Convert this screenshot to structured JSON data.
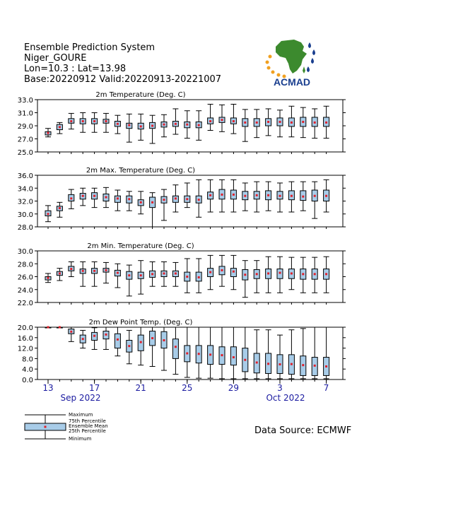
{
  "header": {
    "title": "Ensemble Prediction System",
    "station": "Niger_GOURE",
    "coords": "Lon=10.3 : Lat=13.98",
    "dates": "Base:20220912 Valid:20220913-20221007"
  },
  "logo": {
    "text": "ACMAD",
    "brand_color": "#1a3f8f",
    "africa_color": "#3c8a2e",
    "accent_color": "#f0a020"
  },
  "x_axis": {
    "tick_labels": [
      "13",
      "17",
      "21",
      "25",
      "29",
      "3",
      "7"
    ],
    "month_labels": [
      "Sep 2022",
      "Oct 2022"
    ],
    "color": "#1a1aa0"
  },
  "legend": {
    "maximum": "Maximum",
    "p75": "75th Percentile",
    "mean": "Ensemble Mean",
    "p25": "25th Percentile",
    "minimum": "Minimum"
  },
  "source": "Data Source: ECMWF",
  "colors": {
    "box_fill": "#a8cce8",
    "mean_marker": "#e0202a",
    "frame": "#000000"
  },
  "chart_data": [
    {
      "type": "boxplot",
      "title": "2m Temperature (Deg. C)",
      "x": [
        "13",
        "14",
        "15",
        "16",
        "17",
        "18",
        "19",
        "20",
        "21",
        "22",
        "23",
        "24",
        "25",
        "26",
        "27",
        "28",
        "29",
        "30",
        "1",
        "2",
        "3",
        "4",
        "5",
        "6",
        "7"
      ],
      "ylim": [
        25.0,
        33.0
      ],
      "yticks": [
        "33.0",
        "31.0",
        "29.0",
        "27.0",
        "25.0"
      ],
      "min": [
        27.3,
        27.8,
        28.5,
        28.0,
        28.0,
        28.0,
        27.8,
        26.5,
        26.8,
        26.3,
        27.3,
        27.7,
        27.1,
        26.8,
        28.3,
        28.1,
        27.8,
        26.6,
        27.2,
        27.5,
        27.3,
        27.3,
        27.2,
        27.1,
        27.1
      ],
      "p25": [
        27.6,
        28.4,
        29.4,
        29.3,
        29.3,
        29.4,
        28.9,
        28.6,
        28.5,
        28.6,
        28.8,
        28.9,
        28.7,
        28.7,
        29.3,
        29.5,
        29.3,
        28.9,
        28.9,
        29.0,
        29.0,
        28.9,
        28.9,
        28.9,
        28.9
      ],
      "mean": [
        27.9,
        28.8,
        29.7,
        29.7,
        29.7,
        29.7,
        29.3,
        29.1,
        28.9,
        29.0,
        29.2,
        29.3,
        29.2,
        29.1,
        29.7,
        29.9,
        29.7,
        29.5,
        29.5,
        29.6,
        29.6,
        29.5,
        29.6,
        29.5,
        29.5
      ],
      "p75": [
        28.1,
        29.2,
        30.1,
        30.1,
        30.1,
        30.0,
        29.7,
        29.4,
        29.4,
        29.5,
        29.6,
        29.7,
        29.6,
        29.6,
        30.2,
        30.3,
        30.2,
        30.1,
        30.1,
        30.1,
        30.2,
        30.2,
        30.3,
        30.3,
        30.3
      ],
      "max": [
        28.6,
        29.5,
        30.9,
        31.0,
        31.0,
        30.9,
        30.6,
        30.8,
        30.8,
        30.6,
        30.7,
        31.6,
        31.3,
        31.3,
        32.3,
        32.2,
        32.3,
        31.5,
        31.5,
        31.6,
        31.4,
        32.0,
        31.8,
        31.6,
        32.0
      ]
    },
    {
      "type": "boxplot",
      "title": "2m Max. Temperature (Deg. C)",
      "x": [
        "13",
        "14",
        "15",
        "16",
        "17",
        "18",
        "19",
        "20",
        "21",
        "22",
        "23",
        "24",
        "25",
        "26",
        "27",
        "28",
        "29",
        "30",
        "1",
        "2",
        "3",
        "4",
        "5",
        "6",
        "7"
      ],
      "ylim": [
        28.0,
        36.0
      ],
      "yticks": [
        "36.0",
        "34.0",
        "32.0",
        "30.0",
        "28.0"
      ],
      "min": [
        28.8,
        29.5,
        30.8,
        31.3,
        31.0,
        31.0,
        30.5,
        30.5,
        30.0,
        28.0,
        29.0,
        30.3,
        31.0,
        29.5,
        30.3,
        30.3,
        30.3,
        30.5,
        30.3,
        30.5,
        30.3,
        30.3,
        30.5,
        29.3,
        30.3
      ],
      "p25": [
        29.7,
        30.5,
        32.0,
        32.3,
        32.3,
        32.0,
        31.8,
        31.7,
        31.3,
        31.0,
        31.7,
        31.8,
        31.8,
        31.7,
        32.3,
        32.3,
        32.3,
        32.2,
        32.3,
        32.2,
        32.3,
        32.2,
        32.1,
        32.0,
        32.0
      ],
      "mean": [
        30.0,
        30.9,
        32.4,
        32.8,
        32.8,
        32.6,
        32.4,
        32.3,
        31.8,
        31.8,
        32.2,
        32.4,
        32.3,
        32.2,
        32.9,
        33.0,
        33.0,
        32.8,
        32.9,
        32.9,
        32.8,
        32.8,
        32.7,
        32.8,
        32.8
      ],
      "p75": [
        30.5,
        31.2,
        33.0,
        33.2,
        33.3,
        33.1,
        32.8,
        32.8,
        32.2,
        32.6,
        32.7,
        32.8,
        32.8,
        32.8,
        33.4,
        33.8,
        33.7,
        33.5,
        33.5,
        33.6,
        33.5,
        33.6,
        33.6,
        33.7,
        33.7
      ],
      "max": [
        31.3,
        31.8,
        33.8,
        34.0,
        34.0,
        34.1,
        33.7,
        33.5,
        33.5,
        33.3,
        33.8,
        34.5,
        34.8,
        35.3,
        35.3,
        35.3,
        35.3,
        34.8,
        35.0,
        35.0,
        34.8,
        35.0,
        35.0,
        35.0,
        35.3
      ]
    },
    {
      "type": "boxplot",
      "title": "2m Min. Temperature (Deg. C)",
      "x": [
        "13",
        "14",
        "15",
        "16",
        "17",
        "18",
        "19",
        "20",
        "21",
        "22",
        "23",
        "24",
        "25",
        "26",
        "27",
        "28",
        "29",
        "30",
        "1",
        "2",
        "3",
        "4",
        "5",
        "6",
        "7"
      ],
      "ylim": [
        22.0,
        30.0
      ],
      "yticks": [
        "30.0",
        "28.0",
        "26.0",
        "24.0",
        "22.0"
      ],
      "min": [
        25.1,
        25.4,
        26.0,
        24.5,
        24.5,
        25.0,
        24.3,
        23.0,
        23.3,
        24.5,
        24.5,
        24.5,
        23.5,
        23.5,
        24.0,
        24.5,
        24.0,
        22.8,
        23.5,
        23.5,
        23.5,
        24.0,
        23.5,
        23.5,
        23.5
      ],
      "p25": [
        25.5,
        26.2,
        26.9,
        26.5,
        26.5,
        26.7,
        26.1,
        25.6,
        25.7,
        25.9,
        26.0,
        26.0,
        25.3,
        25.3,
        26.0,
        26.3,
        26.0,
        25.5,
        25.7,
        25.7,
        25.7,
        25.7,
        25.6,
        25.6,
        25.6
      ],
      "mean": [
        25.8,
        26.5,
        27.2,
        26.9,
        26.9,
        27.0,
        26.6,
        26.2,
        26.2,
        26.4,
        26.5,
        26.5,
        26.0,
        25.9,
        26.7,
        27.0,
        26.8,
        26.3,
        26.4,
        26.5,
        26.6,
        26.5,
        26.4,
        26.4,
        26.4
      ],
      "p75": [
        26.0,
        26.8,
        27.6,
        27.2,
        27.3,
        27.3,
        27.0,
        26.8,
        26.7,
        26.9,
        26.9,
        26.9,
        26.7,
        26.7,
        27.3,
        27.6,
        27.3,
        27.1,
        27.1,
        27.2,
        27.2,
        27.2,
        27.2,
        27.2,
        27.2
      ],
      "max": [
        26.5,
        27.3,
        28.3,
        28.3,
        28.3,
        28.2,
        28.0,
        27.8,
        28.5,
        28.3,
        28.3,
        28.2,
        28.8,
        28.8,
        29.3,
        29.3,
        29.3,
        28.5,
        28.5,
        29.1,
        29.1,
        29.0,
        29.0,
        29.0,
        29.1
      ]
    },
    {
      "type": "boxplot",
      "title": "2m Dew Point Temp. (Deg. C)",
      "x": [
        "13",
        "14",
        "15",
        "16",
        "17",
        "18",
        "19",
        "20",
        "21",
        "22",
        "23",
        "24",
        "25",
        "26",
        "27",
        "28",
        "29",
        "30",
        "1",
        "2",
        "3",
        "4",
        "5",
        "6",
        "7"
      ],
      "ylim": [
        0.0,
        20.0
      ],
      "yticks": [
        "20.0",
        "16.0",
        "12.0",
        "8.0",
        "4.0",
        "0.0"
      ],
      "min": [
        20.0,
        20.0,
        14.5,
        12.0,
        11.5,
        11.5,
        9.0,
        6.0,
        5.5,
        5.0,
        3.5,
        2.0,
        0.8,
        0.5,
        0.5,
        0.3,
        0.3,
        0.3,
        0.3,
        0.3,
        0.3,
        0.3,
        0.3,
        0.3,
        0.3
      ],
      "p25": [
        20.0,
        20.0,
        17.5,
        14.0,
        15.0,
        15.5,
        12.0,
        10.5,
        11.0,
        13.0,
        12.0,
        8.0,
        6.8,
        6.3,
        5.8,
        5.8,
        5.5,
        3.0,
        2.5,
        2.3,
        2.3,
        2.0,
        1.5,
        1.5,
        1.5
      ],
      "mean": [
        20.0,
        20.0,
        18.3,
        15.5,
        16.7,
        17.2,
        15.3,
        12.8,
        14.3,
        15.8,
        15.0,
        12.5,
        10.0,
        9.8,
        9.5,
        9.3,
        8.5,
        7.5,
        6.5,
        6.0,
        5.8,
        5.9,
        5.5,
        5.3,
        5.0
      ],
      "p75": [
        20.0,
        20.0,
        19.3,
        17.0,
        18.0,
        18.5,
        17.5,
        15.0,
        17.0,
        18.5,
        18.3,
        15.5,
        13.0,
        13.0,
        13.0,
        12.5,
        12.5,
        12.0,
        10.0,
        10.0,
        9.5,
        9.5,
        9.0,
        8.5,
        8.5
      ],
      "max": [
        20.0,
        20.0,
        20.0,
        18.8,
        19.8,
        20.0,
        20.0,
        18.8,
        20.0,
        20.0,
        20.0,
        20.0,
        20.0,
        20.0,
        20.0,
        20.0,
        20.0,
        20.0,
        19.0,
        19.0,
        17.0,
        19.0,
        19.5,
        20.0,
        20.0
      ]
    }
  ]
}
